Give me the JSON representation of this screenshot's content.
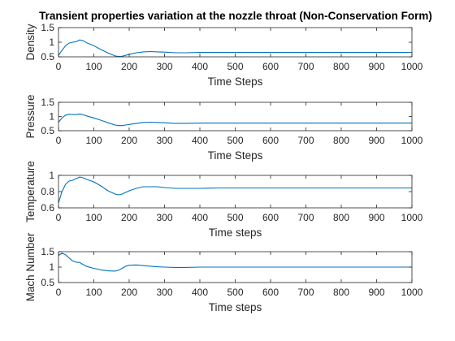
{
  "colors": {
    "series": "#0072BD",
    "axes": "#262626"
  },
  "chart_data": [
    {
      "type": "line",
      "title": "Transient properties variation at the nozzle throat (Non-Conservation Form)",
      "xlabel": "Time Steps",
      "ylabel": "Density",
      "xlim": [
        0,
        1000
      ],
      "ylim": [
        0.5,
        1.5
      ],
      "xticks": [
        0,
        100,
        200,
        300,
        400,
        500,
        600,
        700,
        800,
        900,
        1000
      ],
      "yticks": [
        0.5,
        1,
        1.5
      ],
      "yticklabels": [
        "0.5",
        "1",
        "1.5"
      ],
      "grid": false,
      "series": [
        {
          "x": [
            0,
            10,
            20,
            30,
            40,
            50,
            60,
            70,
            80,
            100,
            120,
            140,
            160,
            170,
            180,
            190,
            200,
            220,
            240,
            260,
            280,
            300,
            330,
            360,
            400,
            450,
            500,
            600,
            700,
            800,
            900,
            1000
          ],
          "values": [
            0.55,
            0.72,
            0.88,
            0.97,
            1.0,
            1.02,
            1.08,
            1.05,
            0.98,
            0.88,
            0.75,
            0.63,
            0.53,
            0.51,
            0.52,
            0.55,
            0.59,
            0.64,
            0.67,
            0.68,
            0.67,
            0.66,
            0.64,
            0.64,
            0.65,
            0.65,
            0.65,
            0.65,
            0.65,
            0.65,
            0.65,
            0.65
          ]
        }
      ]
    },
    {
      "type": "line",
      "title": "",
      "xlabel": "Time Steps",
      "ylabel": "Pressure",
      "xlim": [
        0,
        1000
      ],
      "ylim": [
        0.5,
        1.5
      ],
      "xticks": [
        0,
        100,
        200,
        300,
        400,
        500,
        600,
        700,
        800,
        900,
        1000
      ],
      "yticks": [
        0.5,
        1,
        1.5
      ],
      "yticklabels": [
        "0.5",
        "1",
        "1.5"
      ],
      "grid": false,
      "series": [
        {
          "x": [
            0,
            10,
            20,
            30,
            40,
            50,
            60,
            70,
            80,
            100,
            120,
            140,
            160,
            170,
            180,
            190,
            200,
            220,
            240,
            260,
            280,
            300,
            330,
            360,
            400,
            450,
            500,
            600,
            700,
            800,
            900,
            1000
          ],
          "values": [
            0.8,
            0.95,
            1.05,
            1.08,
            1.07,
            1.07,
            1.09,
            1.06,
            1.02,
            0.95,
            0.87,
            0.78,
            0.7,
            0.68,
            0.68,
            0.7,
            0.72,
            0.76,
            0.79,
            0.8,
            0.79,
            0.78,
            0.76,
            0.76,
            0.77,
            0.77,
            0.77,
            0.77,
            0.77,
            0.77,
            0.77,
            0.77
          ]
        }
      ]
    },
    {
      "type": "line",
      "title": "",
      "xlabel": "Time steps",
      "ylabel": "Temperature",
      "xlim": [
        0,
        1000
      ],
      "ylim": [
        0.6,
        1.0
      ],
      "xticks": [
        0,
        100,
        200,
        300,
        400,
        500,
        600,
        700,
        800,
        900,
        1000
      ],
      "yticks": [
        0.6,
        0.8,
        1.0
      ],
      "yticklabels": [
        "0.6",
        "0.8",
        "1"
      ],
      "grid": false,
      "series": [
        {
          "x": [
            0,
            10,
            20,
            30,
            40,
            50,
            60,
            70,
            80,
            100,
            120,
            140,
            160,
            170,
            180,
            190,
            200,
            220,
            240,
            260,
            280,
            300,
            330,
            360,
            400,
            450,
            500,
            600,
            700,
            800,
            900,
            1000
          ],
          "values": [
            0.66,
            0.8,
            0.89,
            0.93,
            0.94,
            0.96,
            0.98,
            0.97,
            0.95,
            0.92,
            0.87,
            0.81,
            0.77,
            0.76,
            0.77,
            0.79,
            0.81,
            0.84,
            0.86,
            0.86,
            0.86,
            0.85,
            0.84,
            0.84,
            0.84,
            0.845,
            0.845,
            0.845,
            0.845,
            0.845,
            0.845,
            0.845
          ]
        }
      ]
    },
    {
      "type": "line",
      "title": "",
      "xlabel": "Time steps",
      "ylabel": "Mach Number",
      "xlim": [
        0,
        1000
      ],
      "ylim": [
        0.5,
        1.5
      ],
      "xticks": [
        0,
        100,
        200,
        300,
        400,
        500,
        600,
        700,
        800,
        900,
        1000
      ],
      "yticks": [
        0.5,
        1,
        1.5
      ],
      "yticklabels": [
        "0.5",
        "1",
        "1.5"
      ],
      "grid": false,
      "series": [
        {
          "x": [
            0,
            10,
            20,
            30,
            40,
            50,
            60,
            70,
            80,
            100,
            120,
            140,
            160,
            170,
            180,
            190,
            200,
            220,
            240,
            260,
            280,
            300,
            330,
            360,
            400,
            450,
            500,
            600,
            700,
            800,
            900,
            1000
          ],
          "values": [
            1.38,
            1.45,
            1.4,
            1.3,
            1.2,
            1.16,
            1.15,
            1.08,
            1.02,
            0.96,
            0.91,
            0.88,
            0.87,
            0.9,
            0.96,
            1.03,
            1.06,
            1.07,
            1.05,
            1.03,
            1.01,
            1.0,
            0.99,
            0.99,
            1.0,
            1.0,
            1.0,
            1.0,
            1.0,
            1.0,
            1.0,
            1.0
          ]
        }
      ]
    }
  ]
}
